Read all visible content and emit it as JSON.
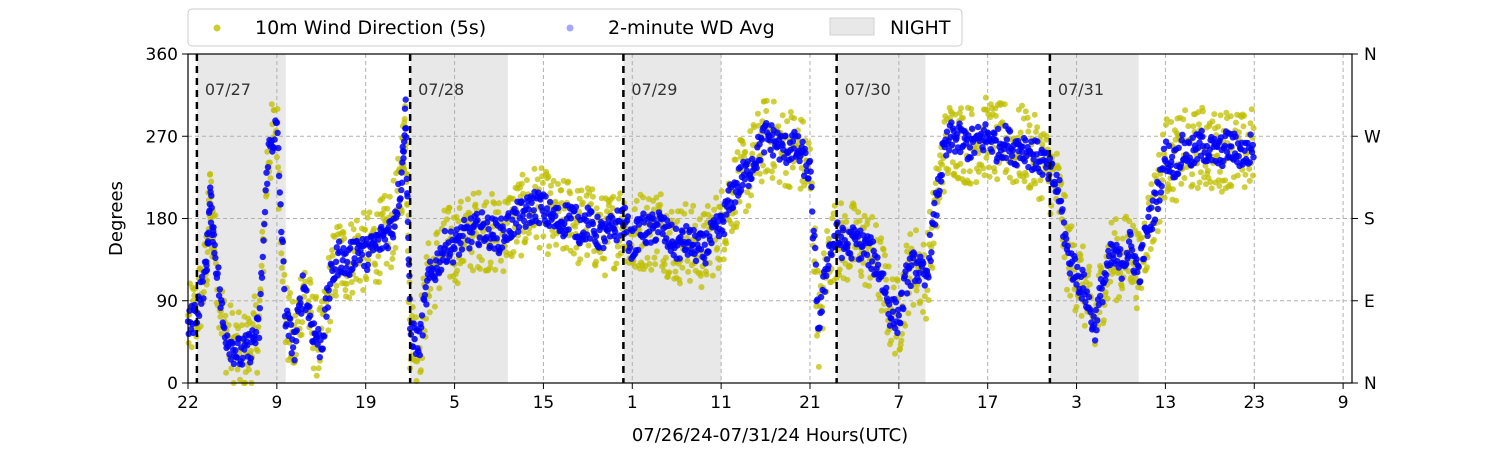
{
  "chart_data": {
    "type": "scatter",
    "xlabel": "07/26/24-07/31/24  Hours(UTC)",
    "ylabel": "Degrees",
    "x_unit": "hours since 2024-07-26 22:00 UTC",
    "xlim": [
      0,
      131
    ],
    "ylim": [
      0,
      360
    ],
    "x_ticks": [
      {
        "x": 0,
        "label": "22"
      },
      {
        "x": 10,
        "label": "9"
      },
      {
        "x": 20,
        "label": "19"
      },
      {
        "x": 30,
        "label": "5"
      },
      {
        "x": 40,
        "label": "15"
      },
      {
        "x": 50,
        "label": "1"
      },
      {
        "x": 60,
        "label": "11"
      },
      {
        "x": 70,
        "label": "21"
      },
      {
        "x": 80,
        "label": "7"
      },
      {
        "x": 90,
        "label": "17"
      },
      {
        "x": 100,
        "label": "3"
      },
      {
        "x": 110,
        "label": "13"
      },
      {
        "x": 120,
        "label": "23"
      },
      {
        "x": 130,
        "label": "9"
      }
    ],
    "y_ticks": [
      0,
      90,
      180,
      270,
      360
    ],
    "right_axis_labels": [
      {
        "y": 0,
        "label": "N"
      },
      {
        "y": 90,
        "label": "E"
      },
      {
        "y": 180,
        "label": "S"
      },
      {
        "y": 270,
        "label": "W"
      },
      {
        "y": 360,
        "label": "N"
      }
    ],
    "grid": true,
    "legend_position": "top, above plot",
    "legend": [
      {
        "label": "10m Wind Direction (5s)",
        "color": "#bfbf00",
        "marker": "circle"
      },
      {
        "label": "2-minute WD Avg",
        "color": "#0000ff",
        "marker": "circle"
      },
      {
        "label": "NIGHT",
        "color": "#e8e8e8",
        "marker": "patch"
      }
    ],
    "night_periods": [
      [
        1,
        11
      ],
      [
        25,
        36
      ],
      [
        49,
        60
      ],
      [
        73,
        83
      ],
      [
        97,
        107
      ]
    ],
    "day_markers": [
      {
        "x": 1,
        "label": "07/27"
      },
      {
        "x": 25,
        "label": "07/28"
      },
      {
        "x": 49,
        "label": "07/29"
      },
      {
        "x": 73,
        "label": "07/30"
      },
      {
        "x": 97,
        "label": "07/31"
      }
    ],
    "series": [
      {
        "name": "2-minute WD Avg",
        "color": "#0000ff",
        "spread": 18,
        "x": [
          0,
          1,
          2,
          2.5,
          3,
          4,
          5,
          6,
          7,
          8,
          9,
          10,
          11,
          12,
          13,
          14,
          15,
          16,
          17,
          18,
          19,
          20,
          21,
          22,
          23,
          24,
          24.5,
          25,
          26,
          27,
          28,
          29,
          30,
          31,
          32,
          33,
          34,
          35,
          36,
          37,
          38,
          39,
          40,
          41,
          42,
          43,
          44,
          45,
          46,
          47,
          48,
          49,
          50,
          51,
          52,
          53,
          54,
          55,
          56,
          57,
          58,
          59,
          60,
          61,
          62,
          63,
          64,
          65,
          66,
          67,
          68,
          69,
          70,
          71,
          72,
          73,
          74,
          75,
          76,
          77,
          78,
          79,
          80,
          81,
          82,
          83,
          84,
          85,
          86,
          87,
          88,
          89,
          90,
          91,
          92,
          93,
          94,
          95,
          96,
          97,
          98,
          99,
          100,
          101,
          102,
          103,
          104,
          105,
          106,
          107,
          108,
          109,
          110,
          111,
          112,
          113,
          114,
          115,
          116,
          117,
          118,
          119,
          120
        ],
        "y": [
          60,
          80,
          120,
          200,
          150,
          60,
          40,
          30,
          40,
          60,
          250,
          280,
          70,
          40,
          110,
          60,
          40,
          110,
          140,
          130,
          150,
          140,
          150,
          160,
          170,
          220,
          300,
          60,
          40,
          110,
          130,
          150,
          150,
          160,
          165,
          170,
          165,
          160,
          170,
          180,
          185,
          195,
          190,
          180,
          175,
          185,
          170,
          175,
          165,
          160,
          170,
          180,
          150,
          170,
          165,
          175,
          160,
          150,
          155,
          150,
          145,
          160,
          170,
          200,
          220,
          230,
          250,
          270,
          265,
          255,
          260,
          250,
          230,
          60,
          140,
          160,
          150,
          155,
          150,
          140,
          120,
          80,
          70,
          120,
          130,
          110,
          180,
          250,
          270,
          265,
          260,
          265,
          270,
          260,
          265,
          255,
          260,
          250,
          245,
          230,
          210,
          140,
          120,
          100,
          60,
          110,
          140,
          130,
          150,
          120,
          170,
          200,
          250,
          240,
          255,
          250,
          260,
          255,
          250,
          260,
          255,
          250,
          260
        ]
      },
      {
        "name": "10m Wind Direction (5s)",
        "color": "#bfbf00",
        "spread": 45,
        "x": [
          0,
          1,
          2,
          2.5,
          3,
          4,
          5,
          6,
          7,
          8,
          9,
          10,
          11,
          12,
          13,
          14,
          15,
          16,
          17,
          18,
          19,
          20,
          21,
          22,
          23,
          24,
          24.5,
          25,
          26,
          27,
          28,
          29,
          30,
          31,
          32,
          33,
          34,
          35,
          36,
          37,
          38,
          39,
          40,
          41,
          42,
          43,
          44,
          45,
          46,
          47,
          48,
          49,
          50,
          51,
          52,
          53,
          54,
          55,
          56,
          57,
          58,
          59,
          60,
          61,
          62,
          63,
          64,
          65,
          66,
          67,
          68,
          69,
          70,
          71,
          72,
          73,
          74,
          75,
          76,
          77,
          78,
          79,
          80,
          81,
          82,
          83,
          84,
          85,
          86,
          87,
          88,
          89,
          90,
          91,
          92,
          93,
          94,
          95,
          96,
          97,
          98,
          99,
          100,
          101,
          102,
          103,
          104,
          105,
          106,
          107,
          108,
          109,
          110,
          111,
          112,
          113,
          114,
          115,
          116,
          117,
          118,
          119,
          120
        ],
        "y": [
          60,
          80,
          120,
          200,
          150,
          60,
          40,
          30,
          40,
          60,
          250,
          280,
          70,
          40,
          110,
          60,
          40,
          110,
          140,
          130,
          150,
          140,
          150,
          160,
          170,
          220,
          300,
          60,
          40,
          110,
          130,
          150,
          150,
          160,
          165,
          170,
          165,
          160,
          170,
          180,
          185,
          195,
          190,
          180,
          175,
          185,
          170,
          175,
          165,
          160,
          170,
          180,
          150,
          170,
          165,
          175,
          160,
          150,
          155,
          150,
          145,
          160,
          170,
          200,
          220,
          230,
          250,
          270,
          265,
          255,
          260,
          250,
          230,
          60,
          140,
          160,
          150,
          155,
          150,
          140,
          120,
          80,
          70,
          120,
          130,
          110,
          180,
          250,
          270,
          265,
          260,
          265,
          270,
          260,
          265,
          255,
          260,
          250,
          245,
          230,
          210,
          140,
          120,
          100,
          60,
          110,
          140,
          130,
          150,
          120,
          170,
          200,
          250,
          240,
          255,
          250,
          260,
          255,
          250,
          260,
          255,
          250,
          260
        ]
      }
    ]
  }
}
